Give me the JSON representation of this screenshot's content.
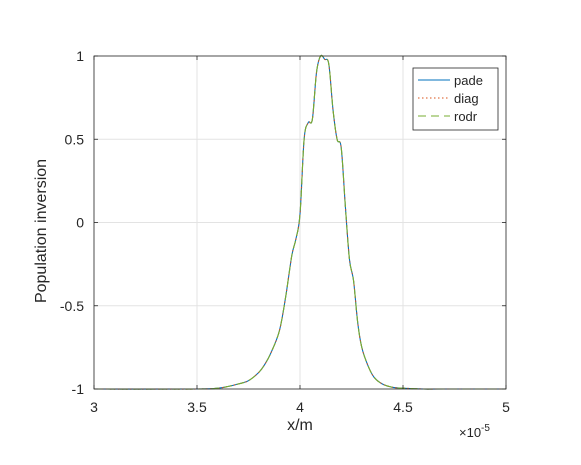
{
  "chart_data": {
    "type": "line",
    "xlabel": "x/m",
    "ylabel": "Population inversion",
    "x_exponent_label": "×10",
    "x_exponent_power": "-5",
    "xlim": [
      3e-05,
      5e-05
    ],
    "ylim": [
      -1,
      1
    ],
    "x_ticks": [
      3e-05,
      3.5e-05,
      4e-05,
      4.5e-05,
      5e-05
    ],
    "x_tick_labels": [
      "3",
      "3.5",
      "4",
      "4.5",
      "5"
    ],
    "y_ticks": [
      -1,
      -0.5,
      0,
      0.5,
      1
    ],
    "y_tick_labels": [
      "-1",
      "-0.5",
      "0",
      "0.5",
      "1"
    ],
    "grid": true,
    "legend_position": "top-right",
    "series": [
      {
        "name": "pade",
        "color": "#0072BD",
        "style": "solid"
      },
      {
        "name": "diag",
        "color": "#D95319",
        "style": "dotted"
      },
      {
        "name": "rodr",
        "color": "#77AC30",
        "style": "dashed"
      }
    ],
    "x": [
      3e-05,
      3.5e-05,
      3.6e-05,
      3.65e-05,
      3.7e-05,
      3.75e-05,
      3.8e-05,
      3.83e-05,
      3.86e-05,
      3.9e-05,
      3.93e-05,
      3.96e-05,
      3.98e-05,
      4e-05,
      4.02e-05,
      4.04e-05,
      4.06e-05,
      4.08e-05,
      4.1e-05,
      4.12e-05,
      4.14e-05,
      4.16e-05,
      4.18e-05,
      4.2e-05,
      4.22e-05,
      4.24e-05,
      4.26e-05,
      4.28e-05,
      4.3e-05,
      4.33e-05,
      4.36e-05,
      4.4e-05,
      4.45e-05,
      4.5e-05,
      4.55e-05,
      4.6e-05,
      4.7e-05,
      5e-05
    ],
    "y": [
      -1.0,
      -1.0,
      -0.995,
      -0.985,
      -0.97,
      -0.95,
      -0.9,
      -0.85,
      -0.78,
      -0.65,
      -0.45,
      -0.2,
      -0.1,
      0.05,
      0.5,
      0.6,
      0.62,
      0.9,
      1.0,
      0.98,
      0.95,
      0.68,
      0.5,
      0.45,
      0.1,
      -0.22,
      -0.35,
      -0.6,
      -0.75,
      -0.86,
      -0.93,
      -0.97,
      -0.99,
      -0.995,
      -0.998,
      -1.0,
      -1.0,
      -1.0
    ]
  }
}
